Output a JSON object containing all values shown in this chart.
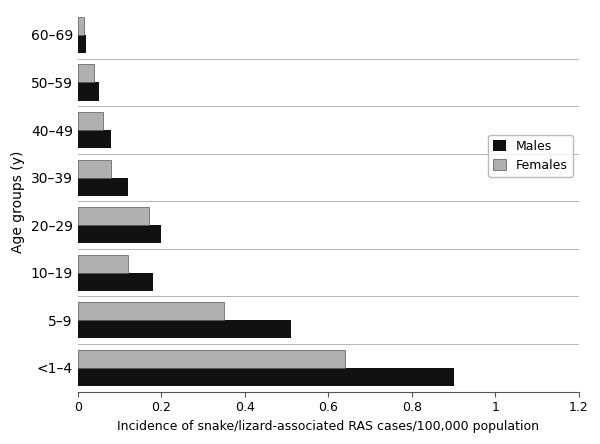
{
  "age_groups": [
    "60–69",
    "50–59",
    "40–49",
    "30–39",
    "20–29",
    "10–19",
    "5–9",
    "<1–4"
  ],
  "males": [
    0.02,
    0.05,
    0.08,
    0.12,
    0.2,
    0.18,
    0.51,
    0.9
  ],
  "females": [
    0.015,
    0.04,
    0.06,
    0.08,
    0.17,
    0.12,
    0.35,
    0.64
  ],
  "male_color": "#111111",
  "female_color": "#b0b0b0",
  "female_edge_color": "#555555",
  "xlabel": "Incidence of snake/lizard-associated RAS cases/100,000 population",
  "ylabel": "Age groups (y)",
  "xlim": [
    0,
    1.2
  ],
  "bar_height": 0.38,
  "legend_labels": [
    "Males",
    "Females"
  ],
  "background_color": "#ffffff",
  "xticks": [
    0,
    0.2,
    0.4,
    0.6,
    0.8,
    1.0,
    1.2
  ],
  "xtick_labels": [
    "0",
    "0.2",
    "0.4",
    "0.6",
    "0.8",
    "1",
    "1.2"
  ]
}
